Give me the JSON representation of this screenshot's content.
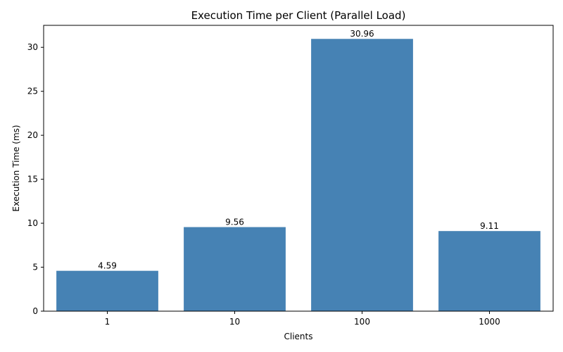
{
  "chart_data": {
    "type": "bar",
    "title": "Execution Time per Client (Parallel Load)",
    "xlabel": "Clients",
    "ylabel": "Execution Time (ms)",
    "categories": [
      "1",
      "10",
      "100",
      "1000"
    ],
    "values": [
      4.59,
      9.56,
      30.96,
      9.11
    ],
    "value_labels": [
      "4.59",
      "9.56",
      "30.96",
      "9.11"
    ],
    "ylim": [
      0,
      32.5
    ],
    "yticks": [
      0,
      5,
      10,
      15,
      20,
      25,
      30
    ],
    "grid": false,
    "bar_color": "#4682B4"
  }
}
